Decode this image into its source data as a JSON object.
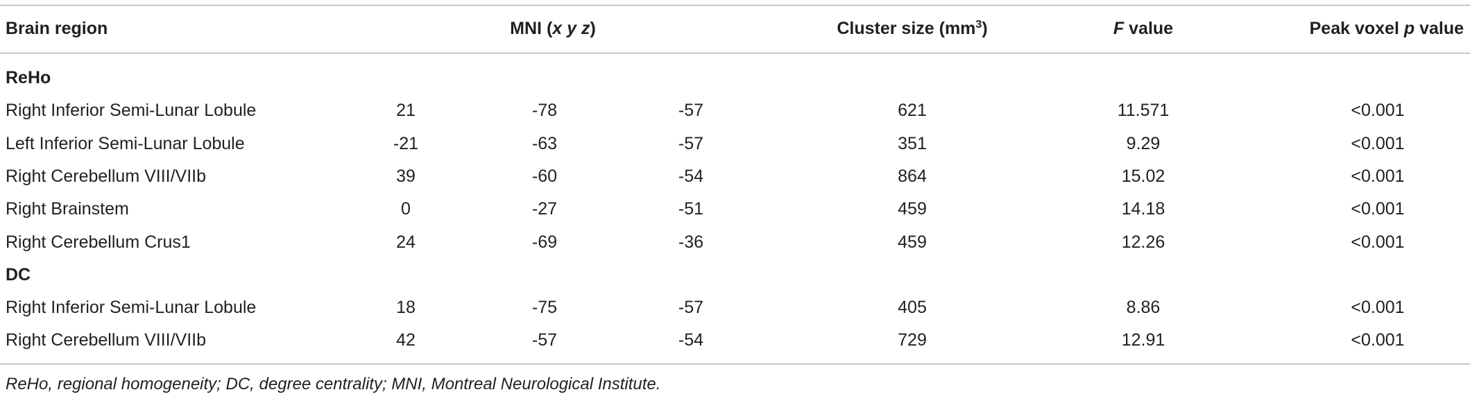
{
  "header": [
    [
      {
        "text": "Brain region"
      }
    ],
    [
      {
        "text": "MNI ("
      },
      {
        "text": "x y z",
        "style": "italic"
      },
      {
        "text": ")"
      }
    ],
    [
      {
        "text": "Cluster size (mm"
      },
      {
        "text": "3",
        "style": "sup"
      },
      {
        "text": ")"
      }
    ],
    [
      {
        "text": "F",
        "style": "italic"
      },
      {
        "text": " value"
      }
    ],
    [
      {
        "text": "Peak voxel "
      },
      {
        "text": "p",
        "style": "italic"
      },
      {
        "text": " value"
      }
    ]
  ],
  "sections": [
    {
      "label": "ReHo",
      "rows": [
        [
          "Right Inferior Semi-Lunar Lobule",
          "21",
          "-78",
          "-57",
          "621",
          "11.571",
          "<0.001"
        ],
        [
          "Left Inferior Semi-Lunar Lobule",
          "-21",
          "-63",
          "-57",
          "351",
          "9.29",
          "<0.001"
        ],
        [
          "Right Cerebellum VIII/VIIb",
          "39",
          "-60",
          "-54",
          "864",
          "15.02",
          "<0.001"
        ],
        [
          "Right Brainstem",
          "0",
          "-27",
          "-51",
          "459",
          "14.18",
          "<0.001"
        ],
        [
          "Right Cerebellum Crus1",
          "24",
          "-69",
          "-36",
          "459",
          "12.26",
          "<0.001"
        ]
      ]
    },
    {
      "label": "DC",
      "rows": [
        [
          "Right Inferior Semi-Lunar Lobule",
          "18",
          "-75",
          "-57",
          "405",
          "8.86",
          "<0.001"
        ],
        [
          "Right Cerebellum VIII/VIIb",
          "42",
          "-57",
          "-54",
          "729",
          "12.91",
          "<0.001"
        ]
      ]
    }
  ],
  "footnote": "ReHo, regional homogeneity; DC, degree centrality; MNI, Montreal Neurological Institute."
}
